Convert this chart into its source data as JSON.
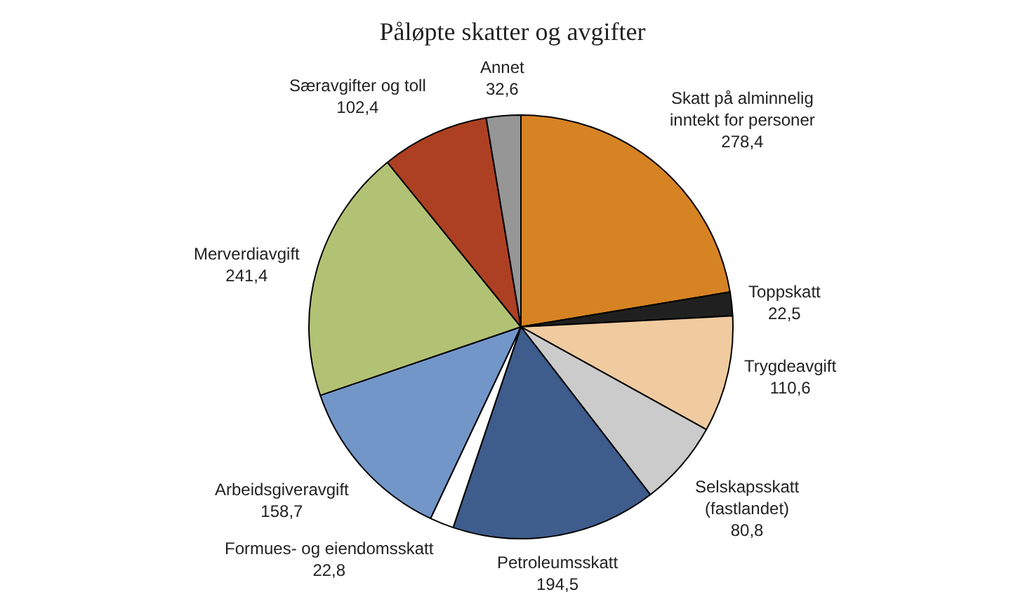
{
  "chart_data": {
    "type": "pie",
    "title": "Påløpte skatter og avgifter",
    "categories": [
      "Skatt på alminnelig inntekt for personer",
      "Toppskatt",
      "Trygdeavgift",
      "Selskapsskatt (fastlandet)",
      "Petroleumsskatt",
      "Formues- og eiendomsskatt",
      "Arbeidsgiveravgift",
      "Merverdiavgift",
      "Særavgifter og toll",
      "Annet"
    ],
    "values": [
      278.4,
      22.5,
      110.6,
      80.8,
      194.5,
      22.8,
      158.7,
      241.4,
      102.4,
      32.6
    ],
    "value_labels": [
      "278,4",
      "22,5",
      "110,6",
      "80,8",
      "194,5",
      "22,8",
      "158,7",
      "241,4",
      "102,4",
      "32,6"
    ],
    "colors": [
      "#d68323",
      "#202020",
      "#f0cba0",
      "#cbcbcb",
      "#3e5c8c",
      "#ffffff",
      "#7396c9",
      "#b2c274",
      "#ad4022",
      "#969696"
    ]
  }
}
